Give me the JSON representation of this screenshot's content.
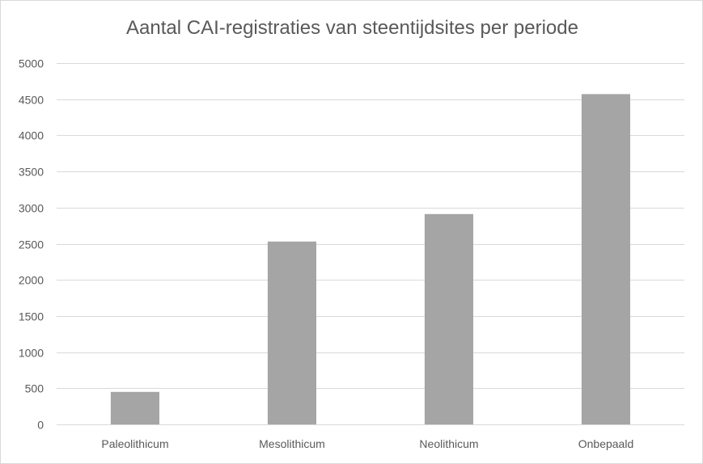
{
  "chart_data": {
    "type": "bar",
    "title": "Aantal CAI-registraties van steentijdsites per periode",
    "xlabel": "",
    "ylabel": "",
    "categories": [
      "Paleolithicum",
      "Mesolithicum",
      "Neolithicum",
      "Onbepaald"
    ],
    "values": [
      450,
      2530,
      2910,
      4570
    ],
    "ylim": [
      0,
      5000
    ],
    "yticks": [
      0,
      500,
      1000,
      1500,
      2000,
      2500,
      3000,
      3500,
      4000,
      4500,
      5000
    ],
    "grid": true,
    "legend": "none",
    "bar_color": "#a5a5a5",
    "grid_color": "#d9d9d9",
    "text_color": "#595959"
  }
}
